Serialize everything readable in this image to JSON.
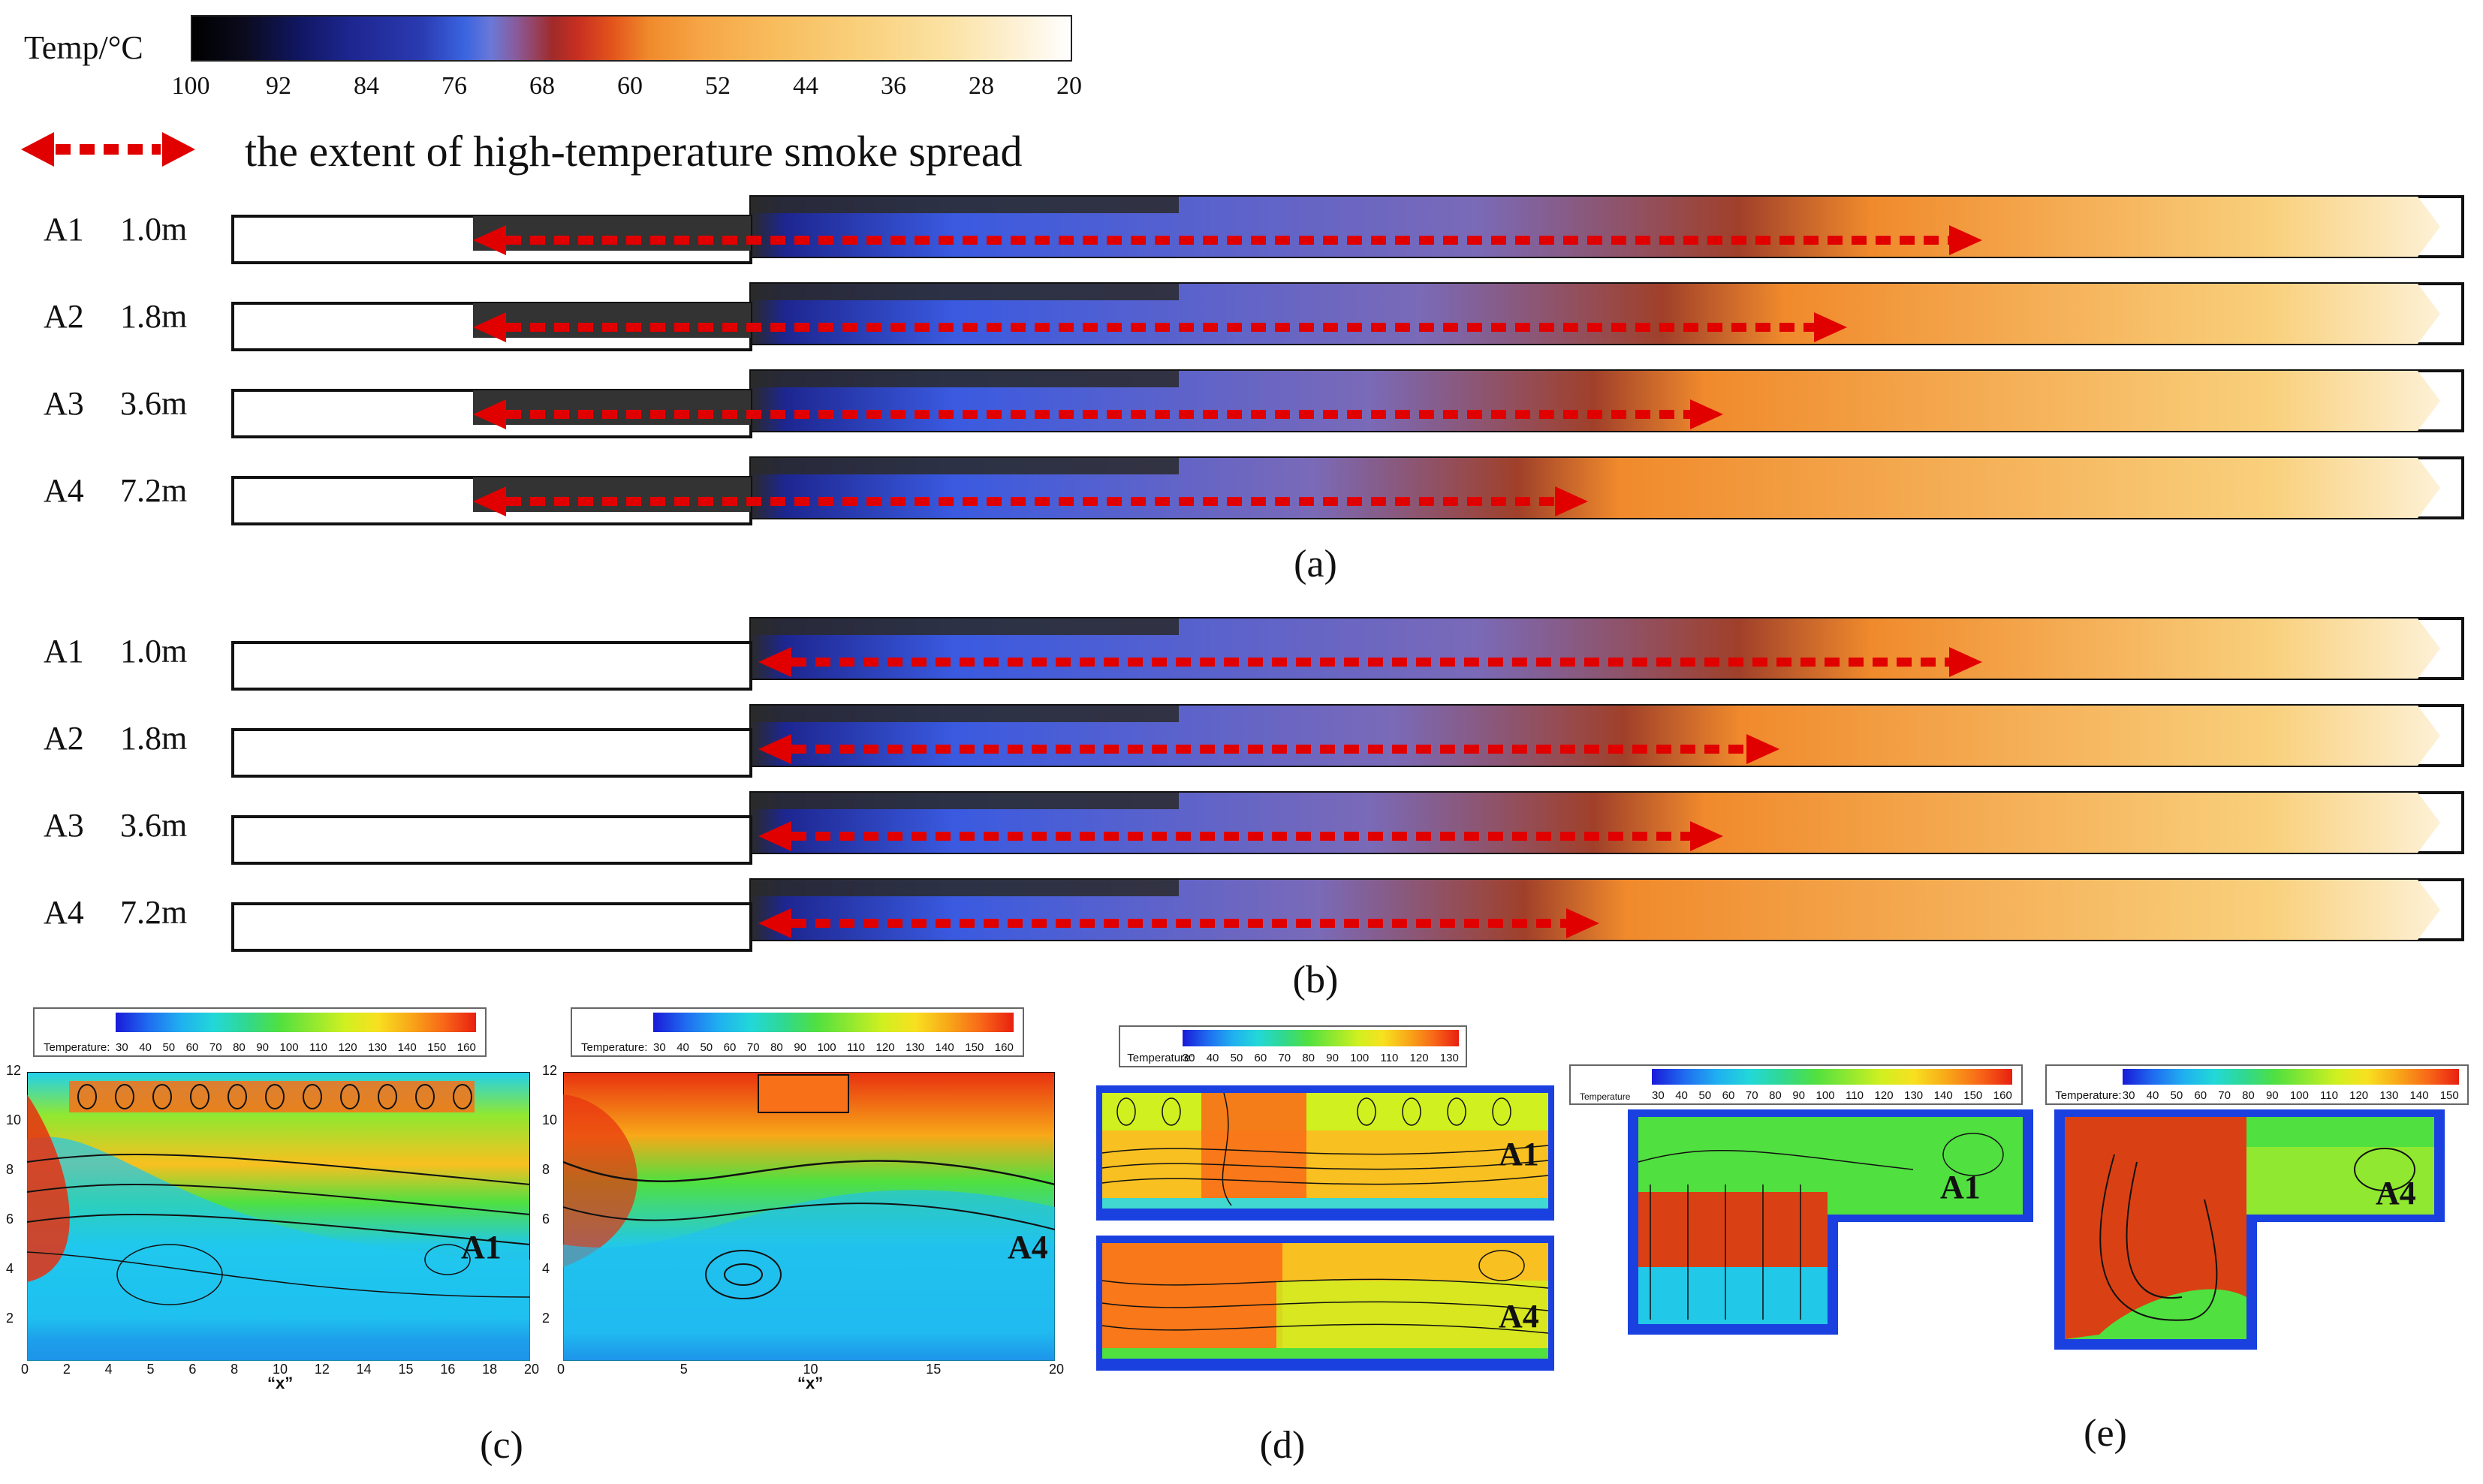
{
  "colorbar": {
    "title": "Temp/°C",
    "ticks": [
      "100",
      "92",
      "84",
      "76",
      "68",
      "60",
      "52",
      "44",
      "36",
      "28",
      "20"
    ]
  },
  "legend": {
    "text": "the extent of high-temperature smoke spread"
  },
  "panel_a": {
    "caption": "(a)",
    "rows": [
      {
        "id": "A1",
        "height": "1.0m",
        "spread_end_fraction": 0.78
      },
      {
        "id": "A2",
        "height": "1.8m",
        "spread_end_fraction": 0.72
      },
      {
        "id": "A3",
        "height": "3.6m",
        "spread_end_fraction": 0.665
      },
      {
        "id": "A4",
        "height": "7.2m",
        "spread_end_fraction": 0.605
      }
    ]
  },
  "panel_b": {
    "caption": "(b)",
    "rows": [
      {
        "id": "A1",
        "height": "1.0m",
        "spread_end_fraction": 0.78
      },
      {
        "id": "A2",
        "height": "1.8m",
        "spread_end_fraction": 0.69
      },
      {
        "id": "A3",
        "height": "3.6m",
        "spread_end_fraction": 0.665
      },
      {
        "id": "A4",
        "height": "7.2m",
        "spread_end_fraction": 0.61
      }
    ]
  },
  "panel_c": {
    "caption": "(c)",
    "colorbar_label": "Temperature:",
    "colorbar_ticks": [
      "30",
      "40",
      "50",
      "60",
      "70",
      "80",
      "90",
      "100",
      "110",
      "120",
      "130",
      "140",
      "150",
      "160"
    ],
    "left": {
      "tag": "A1",
      "y_ticks": [
        "12",
        "10",
        "8",
        "6",
        "4",
        "2"
      ],
      "x_ticks": [
        "0",
        "2",
        "4",
        "5",
        "6",
        "8",
        "10",
        "12",
        "14",
        "15",
        "16",
        "18",
        "20"
      ],
      "x_label": "“x”"
    },
    "right": {
      "tag": "A4",
      "y_ticks": [
        "12",
        "10",
        "8",
        "6",
        "4",
        "2"
      ],
      "x_ticks": [
        "0",
        "5",
        "10",
        "15",
        "20"
      ],
      "x_label": "“x”"
    }
  },
  "panel_d": {
    "caption": "(d)",
    "colorbar_label": "Temperature:",
    "colorbar_ticks": [
      "30",
      "40",
      "50",
      "60",
      "70",
      "80",
      "90",
      "100",
      "110",
      "120",
      "130"
    ],
    "tags": [
      "A1",
      "A4"
    ]
  },
  "panel_e": {
    "caption": "(e)",
    "left": {
      "tag": "A1",
      "colorbar_label": "Temperature",
      "colorbar_ticks": [
        "30",
        "40",
        "50",
        "60",
        "70",
        "80",
        "90",
        "100",
        "110",
        "120",
        "130",
        "140",
        "150",
        "160"
      ]
    },
    "right": {
      "tag": "A4",
      "colorbar_label": "Temperature:",
      "colorbar_ticks": [
        "30",
        "40",
        "50",
        "60",
        "70",
        "80",
        "90",
        "100",
        "110",
        "120",
        "130",
        "140",
        "150"
      ]
    }
  },
  "colors": {
    "arrow": "#e00000",
    "smoke_dark": "#2a2a2a",
    "frame": "#111111"
  }
}
